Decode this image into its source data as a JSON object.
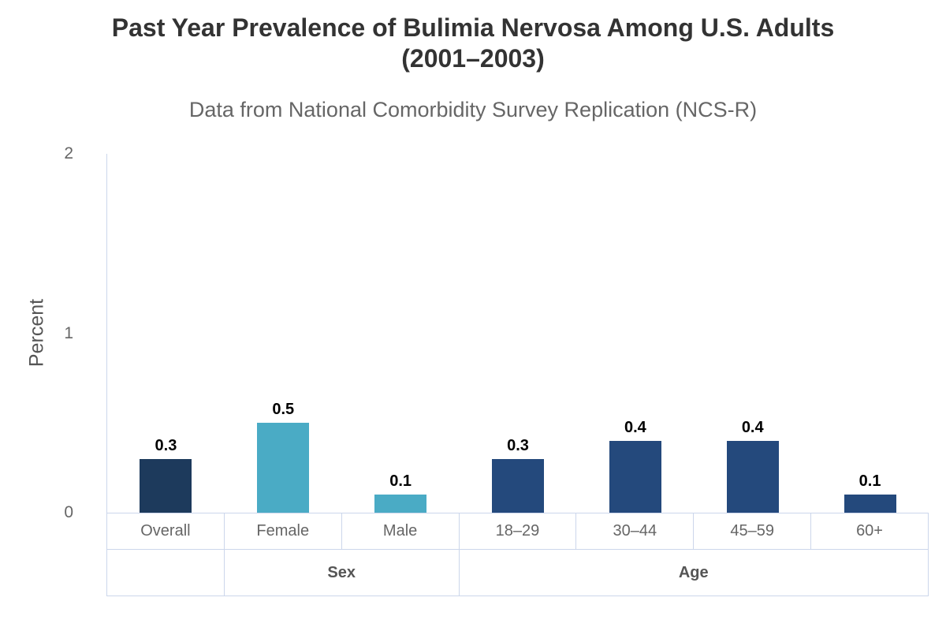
{
  "chart_data": {
    "type": "bar",
    "title_line1": "Past Year Prevalence of Bulimia Nervosa Among U.S. Adults",
    "title_line2": "(2001–2003)",
    "subtitle": "Data from National Comorbidity Survey Replication (NCS-R)",
    "ylabel": "Percent",
    "xlabel": "",
    "ylim": [
      0,
      2
    ],
    "yticks": [
      0,
      1,
      2
    ],
    "grid": false,
    "legend": false,
    "categories": [
      "Overall",
      "Female",
      "Male",
      "18–29",
      "30–44",
      "45–59",
      "60+"
    ],
    "values": [
      0.3,
      0.5,
      0.1,
      0.3,
      0.4,
      0.4,
      0.1
    ],
    "data_labels": [
      "0.3",
      "0.5",
      "0.1",
      "0.3",
      "0.4",
      "0.4",
      "0.1"
    ],
    "point_colors": [
      "#1d3a5c",
      "#4aabc5",
      "#4aabc5",
      "#24497c",
      "#24497c",
      "#24497c",
      "#24497c"
    ],
    "groups": [
      {
        "label": "",
        "span": 1
      },
      {
        "label": "Sex",
        "span": 2
      },
      {
        "label": "Age",
        "span": 4
      }
    ],
    "colors": {
      "title": "#333333",
      "subtitle": "#666666",
      "axis_line": "#ccd6eb",
      "tick_label": "#666666",
      "data_label": "#000000",
      "navy": "#1d3a5c",
      "teal": "#4aabc5",
      "medium_blue": "#24497c"
    }
  }
}
